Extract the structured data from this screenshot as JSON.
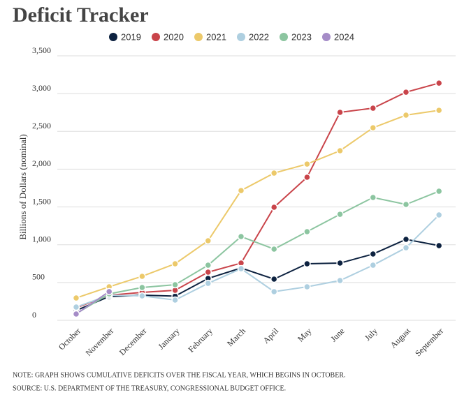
{
  "chart_data": {
    "type": "line",
    "title": "Deficit Tracker",
    "y_label": "Billions of Dollars (nominal)",
    "categories": [
      "October",
      "November",
      "December",
      "January",
      "February",
      "March",
      "April",
      "May",
      "June",
      "July",
      "August",
      "September"
    ],
    "series": [
      {
        "name": "2019",
        "color": "#0d2240",
        "values": [
          130,
          314,
          332,
          320,
          554,
          692,
          545,
          748,
          757,
          877,
          1071,
          988
        ]
      },
      {
        "name": "2020",
        "color": "#c9444a",
        "values": [
          166,
          332,
          369,
          397,
          637,
          757,
          1496,
          1893,
          2752,
          2807,
          3019,
          3139
        ]
      },
      {
        "name": "2021",
        "color": "#ecc96a",
        "values": [
          295,
          443,
          582,
          748,
          1053,
          1717,
          1948,
          2068,
          2244,
          2548,
          2715,
          2779
        ]
      },
      {
        "name": "2022",
        "color": "#aecfe0",
        "values": [
          175,
          332,
          323,
          268,
          489,
          683,
          379,
          443,
          526,
          729,
          960,
          1394
        ]
      },
      {
        "name": "2023",
        "color": "#8cc5a0",
        "values": [
          88,
          350,
          434,
          471,
          729,
          1108,
          942,
          1173,
          1403,
          1625,
          1533,
          1708
        ]
      },
      {
        "name": "2024",
        "color": "#a58cc7",
        "values": [
          83,
          380,
          null,
          null,
          null,
          null,
          null,
          null,
          null,
          null,
          null,
          null
        ]
      }
    ],
    "ylim": [
      0,
      3500
    ],
    "yticks": [
      0,
      500,
      {
        "value": 1000,
        "label": "1,000"
      },
      {
        "value": 1500,
        "label": "1,500"
      },
      {
        "value": 2000,
        "label": "2,000"
      },
      {
        "value": 2500,
        "label": "2,500"
      },
      {
        "value": 3000,
        "label": "3,000"
      },
      {
        "value": 3500,
        "label": "3,500"
      }
    ],
    "grid": true,
    "notes": [
      "NOTE: GRAPH SHOWS CUMULATIVE DEFICITS OVER THE FISCAL YEAR, WHICH BEGINS IN OCTOBER.",
      "SOURCE: U.S. DEPARTMENT OF THE TREASURY, CONGRESSIONAL BUDGET OFFICE."
    ]
  }
}
